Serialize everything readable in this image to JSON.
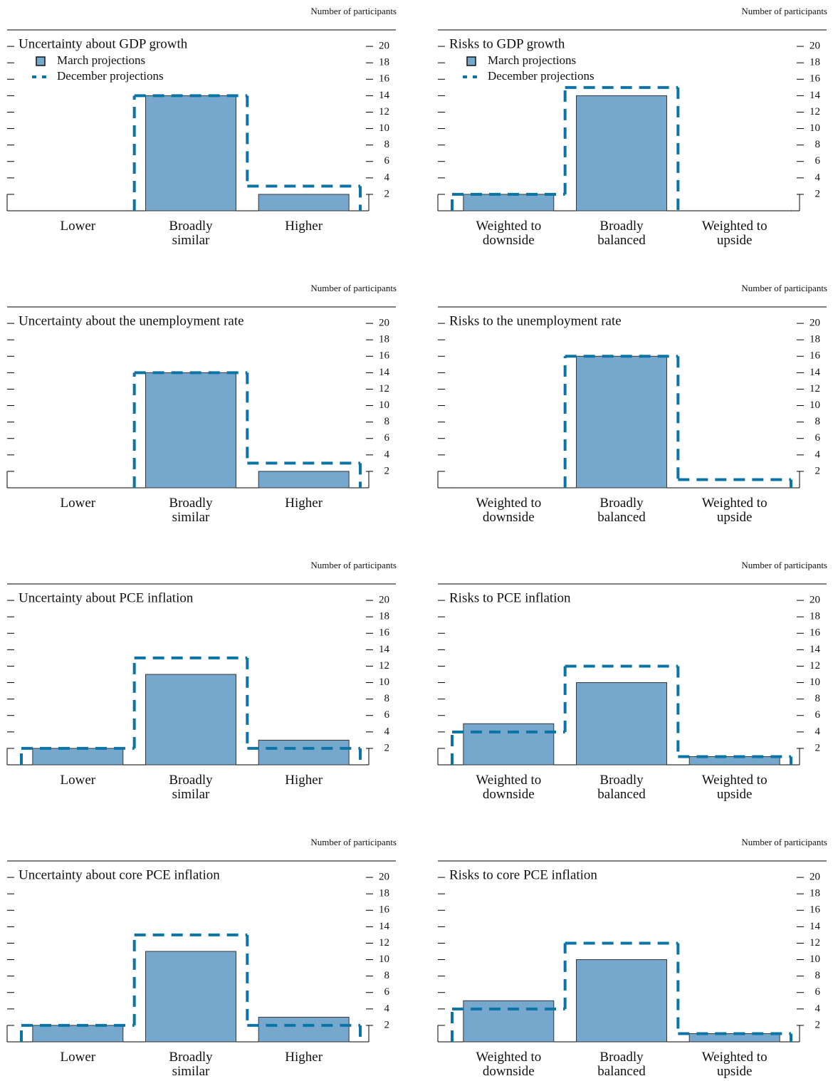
{
  "chart_data": [
    {
      "type": "bar",
      "title": "Uncertainty about GDP growth",
      "y_label": "Number of participants",
      "legend": "upper left",
      "categories": [
        "Lower",
        "Broadly similar",
        "Higher"
      ],
      "series": [
        {
          "name": "March projections",
          "kind": "bar",
          "color": "#76a8cd",
          "values": [
            0,
            14,
            2
          ]
        },
        {
          "name": "December projections",
          "kind": "step",
          "color": "#0b74a6",
          "values": [
            0,
            14,
            3
          ]
        }
      ],
      "ylim": [
        0,
        22
      ],
      "yticks": [
        2,
        4,
        6,
        8,
        10,
        12,
        14,
        16,
        18,
        20
      ]
    },
    {
      "type": "bar",
      "title": "Risks to GDP growth",
      "y_label": "Number of participants",
      "legend": "upper left",
      "categories": [
        "Weighted to downside",
        "Broadly balanced",
        "Weighted to upside"
      ],
      "series": [
        {
          "name": "March projections",
          "kind": "bar",
          "color": "#76a8cd",
          "values": [
            2,
            14,
            0
          ]
        },
        {
          "name": "December projections",
          "kind": "step",
          "color": "#0b74a6",
          "values": [
            2,
            15,
            0
          ]
        }
      ],
      "ylim": [
        0,
        22
      ],
      "yticks": [
        2,
        4,
        6,
        8,
        10,
        12,
        14,
        16,
        18,
        20
      ]
    },
    {
      "type": "bar",
      "title": "Uncertainty about the unemployment rate",
      "y_label": "Number of participants",
      "categories": [
        "Lower",
        "Broadly similar",
        "Higher"
      ],
      "series": [
        {
          "kind": "bar",
          "color": "#76a8cd",
          "values": [
            0,
            14,
            2
          ]
        },
        {
          "kind": "step",
          "color": "#0b74a6",
          "values": [
            0,
            14,
            3
          ]
        }
      ],
      "ylim": [
        0,
        22
      ],
      "yticks": [
        2,
        4,
        6,
        8,
        10,
        12,
        14,
        16,
        18,
        20
      ]
    },
    {
      "type": "bar",
      "title": "Risks to the unemployment rate",
      "y_label": "Number of participants",
      "categories": [
        "Weighted to downside",
        "Broadly balanced",
        "Weighted to upside"
      ],
      "series": [
        {
          "kind": "bar",
          "color": "#76a8cd",
          "values": [
            0,
            16,
            0
          ]
        },
        {
          "kind": "step",
          "color": "#0b74a6",
          "values": [
            0,
            16,
            1
          ]
        }
      ],
      "ylim": [
        0,
        22
      ],
      "yticks": [
        2,
        4,
        6,
        8,
        10,
        12,
        14,
        16,
        18,
        20
      ]
    },
    {
      "type": "bar",
      "title": "Uncertainty about PCE inflation",
      "y_label": "Number of participants",
      "categories": [
        "Lower",
        "Broadly similar",
        "Higher"
      ],
      "series": [
        {
          "kind": "bar",
          "color": "#76a8cd",
          "values": [
            2,
            11,
            3
          ]
        },
        {
          "kind": "step",
          "color": "#0b74a6",
          "values": [
            2,
            13,
            2
          ]
        }
      ],
      "ylim": [
        0,
        22
      ],
      "yticks": [
        2,
        4,
        6,
        8,
        10,
        12,
        14,
        16,
        18,
        20
      ]
    },
    {
      "type": "bar",
      "title": "Risks to PCE inflation",
      "y_label": "Number of participants",
      "categories": [
        "Weighted to downside",
        "Broadly balanced",
        "Weighted to upside"
      ],
      "series": [
        {
          "kind": "bar",
          "color": "#76a8cd",
          "values": [
            5,
            10,
            1
          ]
        },
        {
          "kind": "step",
          "color": "#0b74a6",
          "values": [
            4,
            12,
            1
          ]
        }
      ],
      "ylim": [
        0,
        22
      ],
      "yticks": [
        2,
        4,
        6,
        8,
        10,
        12,
        14,
        16,
        18,
        20
      ]
    },
    {
      "type": "bar",
      "title": "Uncertainty about core PCE inflation",
      "y_label": "Number of participants",
      "categories": [
        "Lower",
        "Broadly similar",
        "Higher"
      ],
      "series": [
        {
          "kind": "bar",
          "color": "#76a8cd",
          "values": [
            2,
            11,
            3
          ]
        },
        {
          "kind": "step",
          "color": "#0b74a6",
          "values": [
            2,
            13,
            2
          ]
        }
      ],
      "ylim": [
        0,
        22
      ],
      "yticks": [
        2,
        4,
        6,
        8,
        10,
        12,
        14,
        16,
        18,
        20
      ]
    },
    {
      "type": "bar",
      "title": "Risks to core PCE inflation",
      "y_label": "Number of participants",
      "categories": [
        "Weighted to downside",
        "Broadly balanced",
        "Weighted to upside"
      ],
      "series": [
        {
          "kind": "bar",
          "color": "#76a8cd",
          "values": [
            5,
            10,
            1
          ]
        },
        {
          "kind": "step",
          "color": "#0b74a6",
          "values": [
            4,
            12,
            1
          ]
        }
      ],
      "ylim": [
        0,
        22
      ],
      "yticks": [
        2,
        4,
        6,
        8,
        10,
        12,
        14,
        16,
        18,
        20
      ]
    }
  ]
}
